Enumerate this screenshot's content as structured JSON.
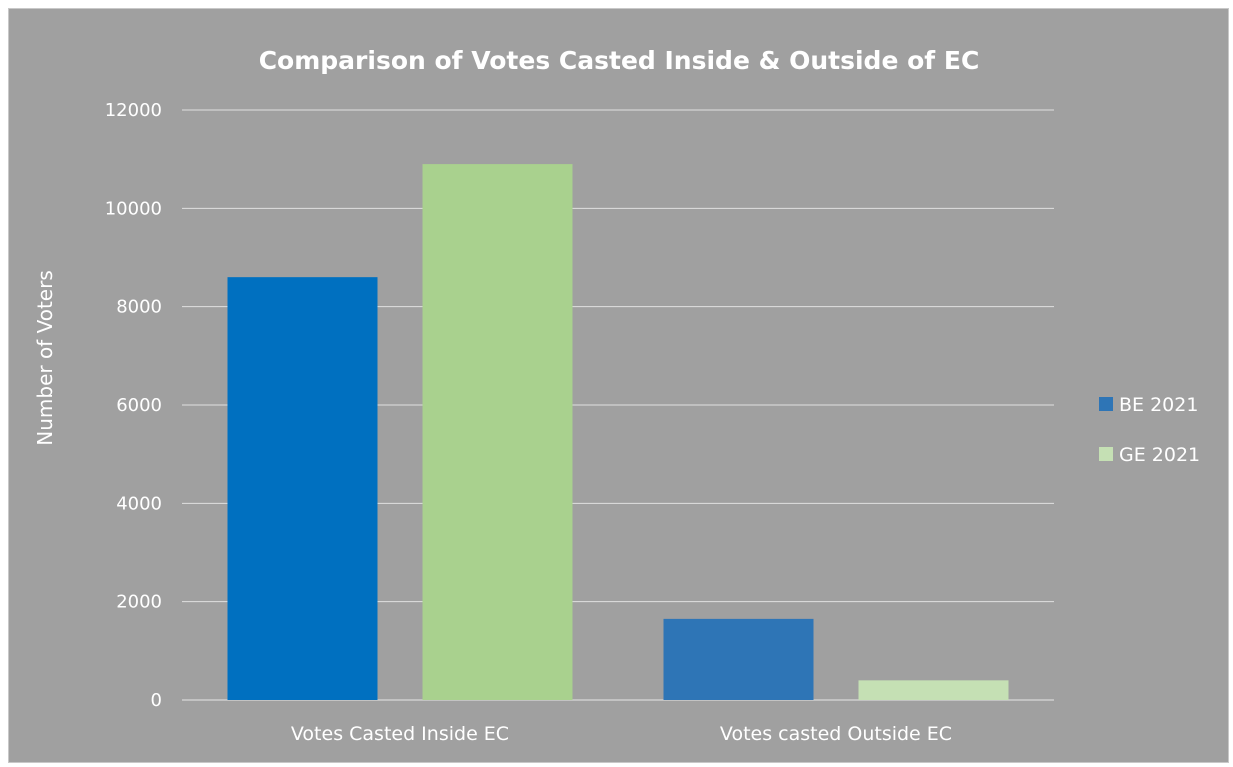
{
  "chart_data": {
    "type": "bar",
    "title": "Comparison of Votes Casted Inside & Outside of EC",
    "ylabel": "Number  of Voters",
    "xlabel": "",
    "categories": [
      "Votes Casted Inside EC",
      "Votes casted Outside EC"
    ],
    "series": [
      {
        "name": "BE 2021",
        "values": [
          8600,
          1650
        ],
        "colors": [
          "#0070c0",
          "#2e75b6"
        ]
      },
      {
        "name": "GE 2021",
        "values": [
          10900,
          400
        ],
        "colors": [
          "#a9d18e",
          "#c5e0b4"
        ]
      }
    ],
    "ylim": [
      0,
      12000
    ],
    "yticks": [
      0,
      2000,
      4000,
      6000,
      8000,
      10000,
      12000
    ],
    "grid": true,
    "legend": "right",
    "legend_colors": [
      "#2e75b6",
      "#c5e0b4"
    ],
    "background": "#a0a0a0"
  }
}
